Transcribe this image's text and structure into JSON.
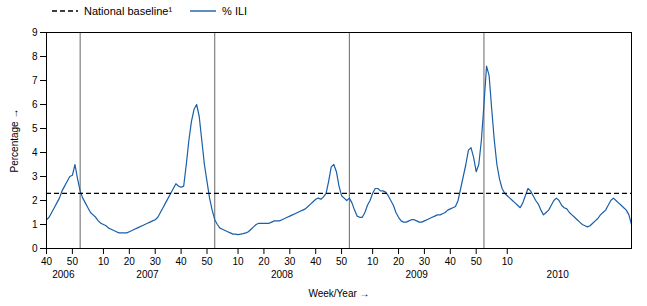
{
  "chart_data": {
    "type": "line",
    "xlabel": "Week/Year",
    "ylabel": "Percentage",
    "ylim": [
      0,
      9
    ],
    "yticks": [
      0,
      1,
      2,
      3,
      4,
      5,
      6,
      7,
      8,
      9
    ],
    "grid": false,
    "legend": "upper left",
    "categories": [
      "40",
      null,
      null,
      null,
      null,
      null,
      null,
      null,
      null,
      null,
      "50",
      null,
      null,
      null,
      null,
      null,
      null,
      null,
      null,
      null,
      null,
      null,
      "10",
      null,
      null,
      null,
      null,
      null,
      null,
      null,
      null,
      null,
      "20",
      null,
      null,
      null,
      null,
      null,
      null,
      null,
      null,
      null,
      "30",
      null,
      null,
      null,
      null,
      null,
      null,
      null,
      null,
      null,
      "40",
      null,
      null,
      null,
      null,
      null,
      null,
      null,
      null,
      null,
      "50",
      null,
      null,
      null,
      null,
      null,
      null,
      null,
      null,
      null,
      null,
      null,
      "10",
      null,
      null,
      null,
      null,
      null,
      null,
      null,
      null,
      null,
      "20",
      null,
      null,
      null,
      null,
      null,
      null,
      null,
      null,
      null,
      "30",
      null,
      null,
      null,
      null,
      null,
      null,
      null,
      null,
      null,
      "40",
      null,
      null,
      null,
      null,
      null,
      null,
      null,
      null,
      null,
      "50",
      null,
      null,
      null,
      null,
      null,
      null,
      null,
      null,
      null,
      null,
      null,
      "10",
      null,
      null,
      null,
      null,
      null,
      null,
      null,
      null,
      null,
      "20",
      null,
      null,
      null,
      null,
      null,
      null,
      null,
      null,
      null,
      "30",
      null,
      null,
      null,
      null,
      null,
      null,
      null,
      null,
      null,
      "40",
      null,
      null,
      null,
      null,
      null,
      null,
      null,
      null,
      null,
      "50",
      null,
      null,
      null,
      null,
      null,
      null,
      null,
      null,
      null,
      null,
      null,
      "10",
      null,
      null,
      null,
      null,
      null,
      null,
      null,
      null,
      null,
      null,
      null,
      null,
      null,
      null,
      null,
      null,
      null,
      null,
      null,
      null,
      null,
      null,
      null,
      null,
      null,
      null,
      null,
      null,
      null,
      null,
      null,
      null,
      null,
      null,
      null,
      null,
      null,
      null,
      null,
      null,
      null,
      null,
      null,
      null,
      null,
      null,
      null,
      null
    ],
    "series": [
      {
        "name": "% ILI",
        "color": "#1a5fa8",
        "line_style": "solid",
        "values": [
          1.2,
          1.3,
          1.5,
          1.7,
          1.9,
          2.1,
          2.4,
          2.6,
          2.8,
          3.0,
          3.05,
          3.5,
          2.9,
          2.4,
          2.1,
          1.9,
          1.7,
          1.5,
          1.4,
          1.3,
          1.15,
          1.05,
          1.0,
          0.95,
          0.85,
          0.8,
          0.75,
          0.7,
          0.65,
          0.65,
          0.65,
          0.65,
          0.7,
          0.75,
          0.8,
          0.85,
          0.9,
          0.95,
          1.0,
          1.05,
          1.1,
          1.15,
          1.2,
          1.3,
          1.5,
          1.7,
          1.9,
          2.1,
          2.3,
          2.5,
          2.7,
          2.6,
          2.55,
          2.6,
          3.5,
          4.5,
          5.3,
          5.8,
          6.0,
          5.5,
          4.5,
          3.5,
          2.8,
          2.1,
          1.6,
          1.2,
          1.0,
          0.85,
          0.8,
          0.75,
          0.7,
          0.65,
          0.6,
          0.6,
          0.58,
          0.6,
          0.62,
          0.65,
          0.7,
          0.8,
          0.9,
          1.0,
          1.05,
          1.05,
          1.05,
          1.05,
          1.05,
          1.1,
          1.15,
          1.15,
          1.15,
          1.2,
          1.25,
          1.3,
          1.35,
          1.4,
          1.45,
          1.5,
          1.55,
          1.6,
          1.65,
          1.75,
          1.85,
          1.95,
          2.05,
          2.1,
          2.05,
          2.15,
          2.3,
          2.8,
          3.4,
          3.5,
          3.2,
          2.6,
          2.2,
          2.1,
          2.0,
          2.1,
          1.9,
          1.6,
          1.35,
          1.3,
          1.3,
          1.5,
          1.8,
          2.0,
          2.3,
          2.5,
          2.5,
          2.4,
          2.4,
          2.35,
          2.2,
          2.0,
          1.8,
          1.5,
          1.3,
          1.15,
          1.1,
          1.1,
          1.15,
          1.2,
          1.2,
          1.15,
          1.1,
          1.1,
          1.15,
          1.2,
          1.25,
          1.3,
          1.35,
          1.4,
          1.4,
          1.45,
          1.5,
          1.6,
          1.65,
          1.7,
          1.75,
          2.0,
          2.5,
          3.0,
          3.5,
          4.1,
          4.2,
          3.8,
          3.2,
          3.5,
          4.5,
          6.0,
          7.6,
          7.2,
          5.8,
          4.5,
          3.5,
          2.9,
          2.5,
          2.3,
          2.2,
          2.1,
          2.0,
          1.9,
          1.8,
          1.7,
          1.9,
          2.2,
          2.5,
          2.4,
          2.2,
          2.0,
          1.85,
          1.6,
          1.4,
          1.5,
          1.6,
          1.8,
          2.0,
          2.1,
          2.0,
          1.8,
          1.7,
          1.65,
          1.5,
          1.4,
          1.3,
          1.2,
          1.1,
          1.0,
          0.95,
          0.9,
          0.95,
          1.05,
          1.15,
          1.25,
          1.4,
          1.5,
          1.6,
          1.8,
          2.0,
          2.1,
          2.0,
          1.9,
          1.8,
          1.7,
          1.6,
          1.4,
          1.0
        ]
      }
    ],
    "baseline": {
      "name": "National baseline¹",
      "value": 2.3,
      "color": "#000000",
      "line_style": "dashed"
    },
    "year_labels": [
      "2006",
      "2007",
      "2008",
      "2009",
      "2010"
    ],
    "year_starts": [
      0,
      13,
      65,
      117,
      169
    ]
  }
}
